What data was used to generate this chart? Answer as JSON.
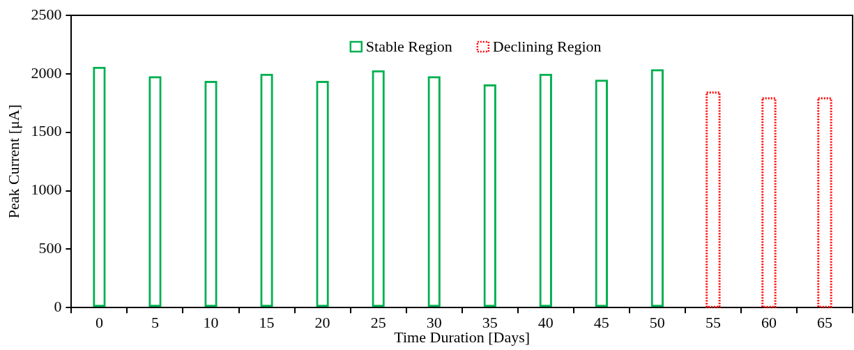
{
  "chart_data": {
    "type": "bar",
    "xlabel": "Time Duration [Days]",
    "ylabel": "Peak Current [μA]",
    "categories": [
      "0",
      "5",
      "10",
      "15",
      "20",
      "25",
      "30",
      "35",
      "40",
      "45",
      "50",
      "55",
      "60",
      "65"
    ],
    "series": [
      {
        "name": "Stable Region",
        "color": "#00b050",
        "line_style": "solid",
        "values": [
          2060,
          1980,
          1940,
          2000,
          1940,
          2030,
          1980,
          1910,
          2000,
          1950,
          2040,
          null,
          null,
          null
        ]
      },
      {
        "name": "Declining Region",
        "color": "#ff0000",
        "line_style": "dotted",
        "values": [
          null,
          null,
          null,
          null,
          null,
          null,
          null,
          null,
          null,
          null,
          null,
          1840,
          1790,
          1790
        ]
      }
    ],
    "ylim": [
      0,
      2500
    ],
    "yticks": [
      0,
      500,
      1000,
      1500,
      2000,
      2500
    ],
    "grid": false,
    "legend": "top"
  }
}
